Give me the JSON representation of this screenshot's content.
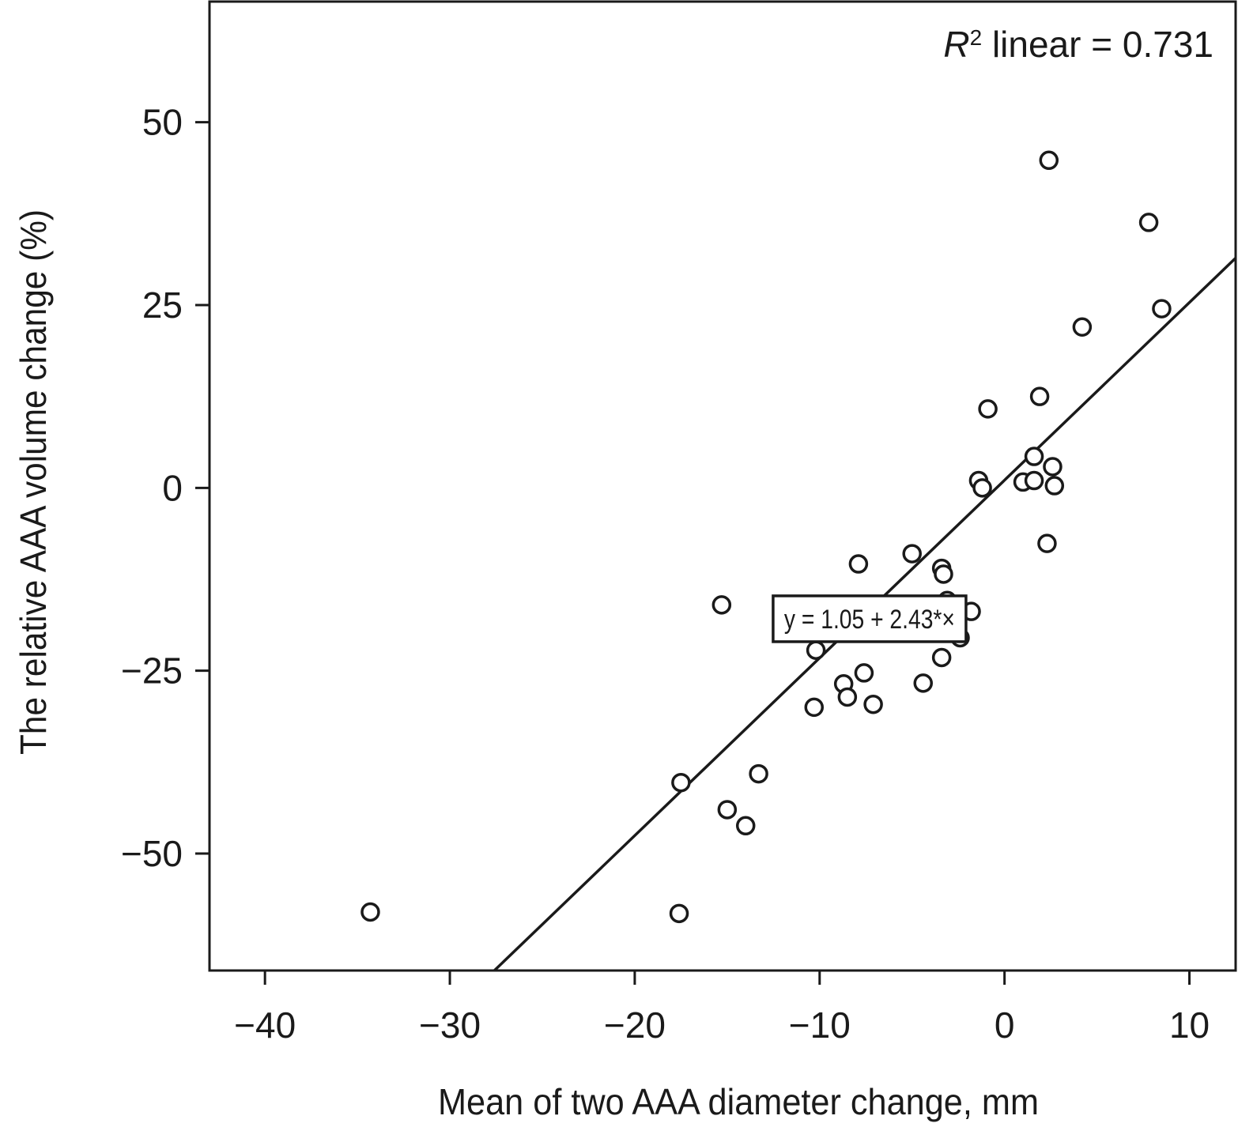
{
  "chart_data": {
    "type": "scatter",
    "xlabel": "Mean of two AAA diameter change, mm",
    "ylabel": "The relative AAA volume change (%)",
    "xlim": [
      -43,
      12.5
    ],
    "ylim": [
      -66,
      66.5
    ],
    "xticks": [
      -40,
      -30,
      -20,
      -10,
      0,
      10
    ],
    "yticks": [
      -50,
      -25,
      0,
      25,
      50
    ],
    "xtick_labels": [
      "−40",
      "−30",
      "−20",
      "−10",
      "0",
      "10"
    ],
    "ytick_labels": [
      "−50",
      "−25",
      "0",
      "25",
      "50"
    ],
    "grid": false,
    "r2_annotation": {
      "prefix": "R",
      "superscript": "2",
      "suffix": " linear = 0.731"
    },
    "fit_line": {
      "intercept": 1.05,
      "slope": 2.43,
      "label": "y = 1.05 + 2.43*×",
      "label_anchor": [
        -7.3,
        -17.9
      ]
    },
    "points": [
      {
        "x": -34.3,
        "y": -58.0
      },
      {
        "x": -17.6,
        "y": -58.2
      },
      {
        "x": -17.5,
        "y": -40.3
      },
      {
        "x": -15.0,
        "y": -44.0
      },
      {
        "x": -14.0,
        "y": -46.2
      },
      {
        "x": -13.3,
        "y": -39.1
      },
      {
        "x": -15.3,
        "y": -16.0
      },
      {
        "x": -10.3,
        "y": -30.0
      },
      {
        "x": -10.2,
        "y": -22.2
      },
      {
        "x": -8.7,
        "y": -26.8
      },
      {
        "x": -8.5,
        "y": -28.6
      },
      {
        "x": -7.6,
        "y": -25.3
      },
      {
        "x": -7.1,
        "y": -29.6
      },
      {
        "x": -7.9,
        "y": -10.4
      },
      {
        "x": -5.0,
        "y": -9.0
      },
      {
        "x": -4.4,
        "y": -26.7
      },
      {
        "x": -3.4,
        "y": -23.2
      },
      {
        "x": -3.4,
        "y": -11.0
      },
      {
        "x": -3.3,
        "y": -11.8
      },
      {
        "x": -3.1,
        "y": -15.4
      },
      {
        "x": -2.4,
        "y": -20.5
      },
      {
        "x": -1.8,
        "y": -16.9
      },
      {
        "x": -1.4,
        "y": 1.0
      },
      {
        "x": -1.2,
        "y": 0.0
      },
      {
        "x": -0.9,
        "y": 10.8
      },
      {
        "x": 1.0,
        "y": 0.8
      },
      {
        "x": 1.6,
        "y": 1.0
      },
      {
        "x": 1.6,
        "y": 4.3
      },
      {
        "x": 1.9,
        "y": 12.5
      },
      {
        "x": 2.3,
        "y": -7.6
      },
      {
        "x": 2.4,
        "y": 44.8
      },
      {
        "x": 2.6,
        "y": 2.9
      },
      {
        "x": 2.7,
        "y": 0.3
      },
      {
        "x": 4.2,
        "y": 22.0
      },
      {
        "x": 7.8,
        "y": 36.3
      },
      {
        "x": 8.5,
        "y": 24.5
      }
    ]
  }
}
